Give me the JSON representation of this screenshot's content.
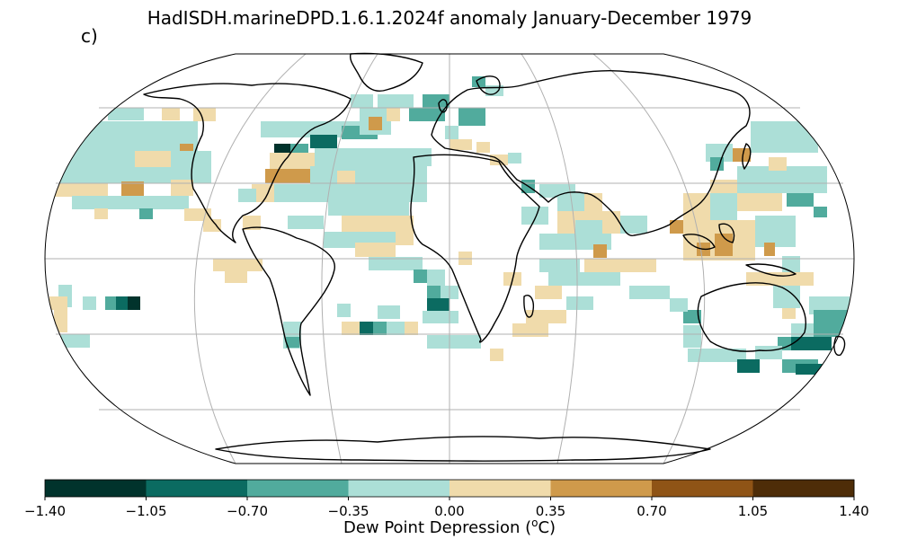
{
  "title": "HadISDH.marineDPD.1.6.1.2024f anomaly January-December 1979",
  "panel_label": "c)",
  "colorbar": {
    "label": "Dew Point Depression (",
    "label_sup": "o",
    "label_end": "C)",
    "ticks": [
      "−1.40",
      "−1.05",
      "−0.70",
      "−0.35",
      "0.00",
      "0.35",
      "0.70",
      "1.05",
      "1.40"
    ],
    "bins": [
      {
        "from": -1.4,
        "to": -1.05,
        "color": "#01332c"
      },
      {
        "from": -1.05,
        "to": -0.7,
        "color": "#0b6b61"
      },
      {
        "from": -0.7,
        "to": -0.35,
        "color": "#51ab9d"
      },
      {
        "from": -0.35,
        "to": 0.0,
        "color": "#acdfd7"
      },
      {
        "from": 0.0,
        "to": 0.35,
        "color": "#f0dbab"
      },
      {
        "from": 0.35,
        "to": 0.7,
        "color": "#cf9a4b"
      },
      {
        "from": 0.7,
        "to": 1.05,
        "color": "#8f5416"
      },
      {
        "from": 1.05,
        "to": 1.4,
        "color": "#4e2d08"
      }
    ]
  },
  "map": {
    "projection": "Robinson",
    "gridlines": true,
    "colors": {
      "land_outline": "#000000",
      "grid": "#b0b0b0",
      "background": "#ffffff"
    }
  }
}
